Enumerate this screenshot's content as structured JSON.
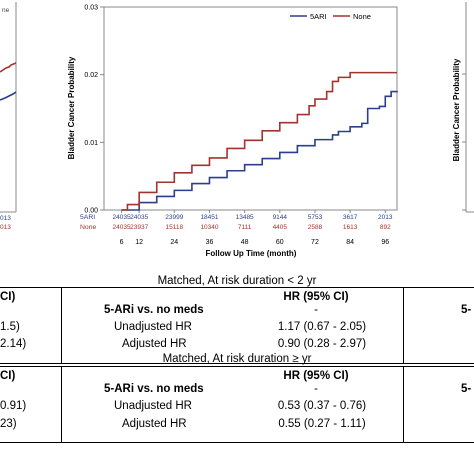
{
  "chart_data": {
    "type": "line",
    "title": "",
    "xlabel": "Follow Up Time (month)",
    "ylabel": "Bladder Cancer Probability",
    "xlim": [
      0,
      100
    ],
    "ylim": [
      0,
      0.03
    ],
    "x_ticks": [
      "6",
      "12",
      "24",
      "36",
      "48",
      "60",
      "72",
      "84",
      "96"
    ],
    "y_ticks": [
      "0.00",
      "0.01",
      "0.02",
      "0.03"
    ],
    "legend_position": "top-right",
    "series": [
      {
        "name": "5ARI",
        "color": "#2b3f8f",
        "x": [
          6,
          12,
          18,
          24,
          30,
          36,
          42,
          48,
          54,
          60,
          66,
          72,
          78,
          80,
          84,
          88,
          90,
          94,
          96,
          98,
          100
        ],
        "y": [
          0.0,
          0.0011,
          0.002,
          0.0029,
          0.0039,
          0.0048,
          0.0058,
          0.0067,
          0.0076,
          0.0085,
          0.0095,
          0.0104,
          0.0111,
          0.0116,
          0.0123,
          0.0128,
          0.015,
          0.0153,
          0.0168,
          0.0175,
          0.0176
        ]
      },
      {
        "name": "None",
        "color": "#a3332d",
        "x": [
          6,
          8,
          12,
          18,
          24,
          30,
          36,
          42,
          48,
          54,
          60,
          66,
          70,
          72,
          76,
          78,
          80,
          84,
          88,
          100
        ],
        "y": [
          0.0,
          0.0008,
          0.0026,
          0.0041,
          0.0055,
          0.0066,
          0.0077,
          0.0091,
          0.0103,
          0.0117,
          0.0129,
          0.0141,
          0.0154,
          0.0164,
          0.0175,
          0.019,
          0.0196,
          0.0203,
          0.0203,
          0.0203
        ]
      }
    ],
    "risk_table": {
      "rows": [
        {
          "label": "5ARI",
          "values": [
            "24035",
            "24035",
            "23999",
            "18451",
            "13485",
            "9144",
            "5753",
            "3617",
            "2013"
          ]
        },
        {
          "label": "None",
          "values": [
            "24035",
            "23937",
            "15118",
            "10340",
            "7111",
            "4405",
            "2588",
            "1613",
            "892"
          ]
        }
      ]
    },
    "left_panel": {
      "risk_values": [
        "013",
        "013"
      ]
    }
  },
  "tables": [
    {
      "title": "Matched, At risk duration < 2 yr",
      "header_left": "5-ARi vs. no meds",
      "header_right": "HR (95% CI)",
      "rows": [
        {
          "label": "",
          "value": "-"
        },
        {
          "label": "Unadjusted HR",
          "value": "1.17 (0.67 - 2.05)"
        },
        {
          "label": "Adjusted HR",
          "value": "0.90 (0.28 - 2.97)"
        }
      ],
      "left_fragments": [
        "CI)",
        "1.5)",
        "2.14)"
      ],
      "right_fragment": "5-"
    },
    {
      "title": "Matched, At risk duration ≥ yr",
      "header_left": "5-ARi vs. no meds",
      "header_right": "HR (95% CI)",
      "rows": [
        {
          "label": "",
          "value": "-"
        },
        {
          "label": "Unadjusted HR",
          "value": "0.53 (0.37 - 0.76)"
        },
        {
          "label": "Adjusted HR",
          "value": "0.55 (0.27 - 1.11)"
        }
      ],
      "left_fragments": [
        "CI)",
        "0.91)",
        "23)"
      ],
      "right_fragment": "5-"
    }
  ],
  "right_panel": {
    "ylabel": "Bladder Cancer Probability"
  }
}
